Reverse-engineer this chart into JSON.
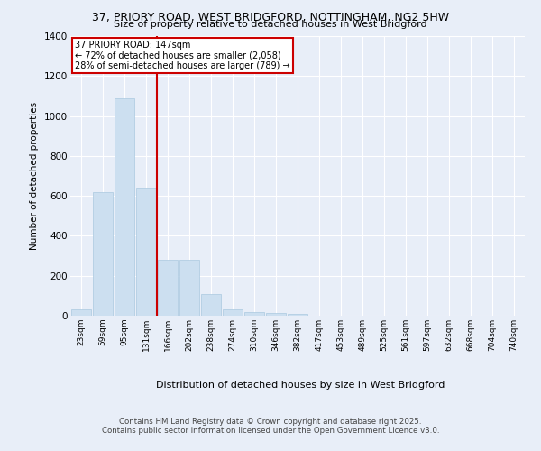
{
  "title_line1": "37, PRIORY ROAD, WEST BRIDGFORD, NOTTINGHAM, NG2 5HW",
  "title_line2": "Size of property relative to detached houses in West Bridgford",
  "xlabel": "Distribution of detached houses by size in West Bridgford",
  "ylabel": "Number of detached properties",
  "categories": [
    "23sqm",
    "59sqm",
    "95sqm",
    "131sqm",
    "166sqm",
    "202sqm",
    "238sqm",
    "274sqm",
    "310sqm",
    "346sqm",
    "382sqm",
    "417sqm",
    "453sqm",
    "489sqm",
    "525sqm",
    "561sqm",
    "597sqm",
    "632sqm",
    "668sqm",
    "704sqm",
    "740sqm"
  ],
  "values": [
    30,
    620,
    1090,
    640,
    280,
    280,
    110,
    30,
    20,
    15,
    10,
    0,
    0,
    0,
    0,
    0,
    0,
    0,
    0,
    0,
    0
  ],
  "bar_color": "#ccdff0",
  "bar_edge_color": "#aac8e0",
  "vline_color": "#cc0000",
  "vline_x": 3.5,
  "annotation_title": "37 PRIORY ROAD: 147sqm",
  "annotation_line2": "← 72% of detached houses are smaller (2,058)",
  "annotation_line3": "28% of semi-detached houses are larger (789) →",
  "annotation_box_color": "#ffffff",
  "annotation_box_edge": "#cc0000",
  "ylim": [
    0,
    1400
  ],
  "yticks": [
    0,
    200,
    400,
    600,
    800,
    1000,
    1200,
    1400
  ],
  "bg_color": "#e8eef8",
  "fig_bg_color": "#e8eef8",
  "grid_color": "#ffffff",
  "footer_line1": "Contains HM Land Registry data © Crown copyright and database right 2025.",
  "footer_line2": "Contains public sector information licensed under the Open Government Licence v3.0."
}
